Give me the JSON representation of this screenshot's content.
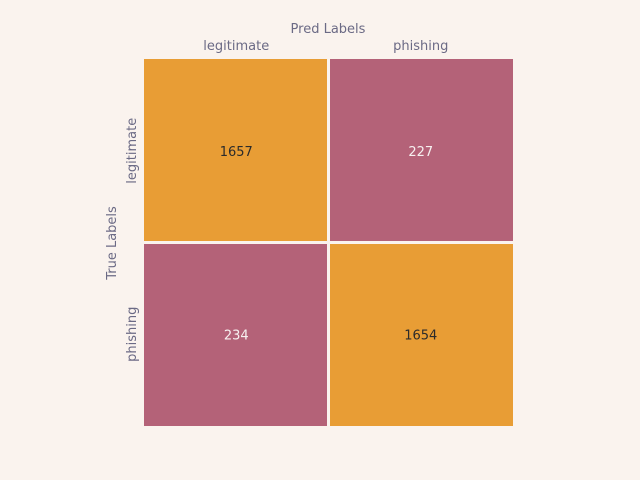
{
  "chart_data": {
    "type": "heatmap",
    "title": "",
    "xlabel": "Pred Labels",
    "ylabel": "True Labels",
    "x_categories": [
      "legitimate",
      "phishing"
    ],
    "y_categories": [
      "legitimate",
      "phishing"
    ],
    "values": [
      [
        1657,
        227
      ],
      [
        234,
        1654
      ]
    ],
    "colors": {
      "high": "#e89d35",
      "low": "#b46278",
      "background": "#faf3ee",
      "grid": "#faf3ee",
      "label_on_high": "#2b2b2b",
      "label_on_low": "#f7f0f0",
      "axis_text": "#6b6a85"
    },
    "x_axis_position": "top",
    "colorbar": false
  }
}
